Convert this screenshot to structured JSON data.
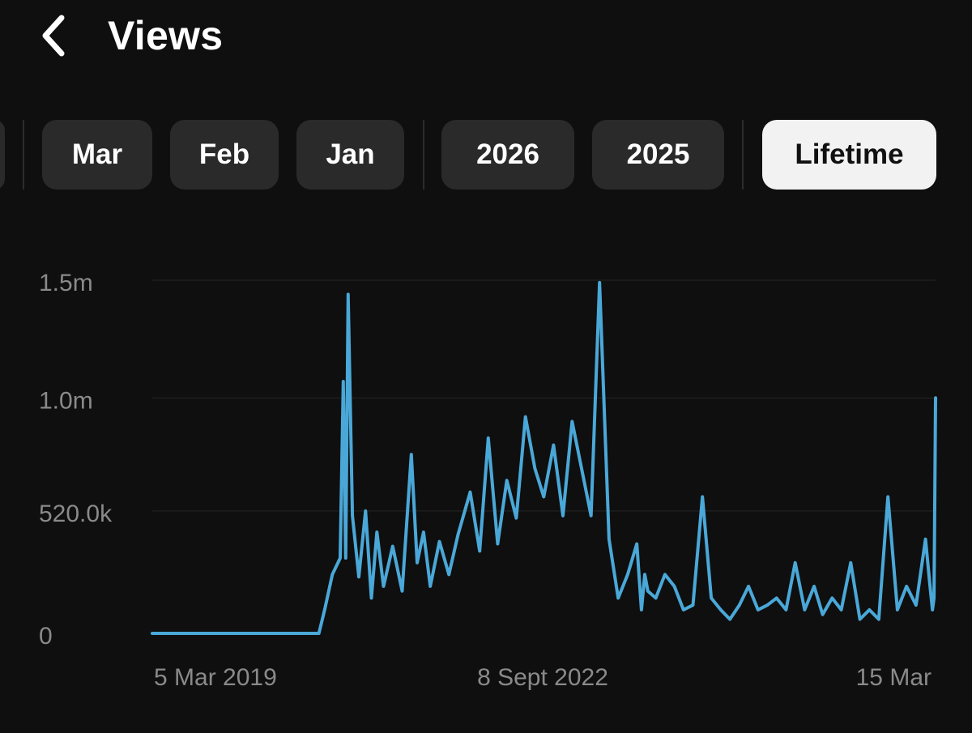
{
  "header": {
    "title": "Views"
  },
  "filters": {
    "chips": [
      {
        "label": "Mar"
      },
      {
        "label": "Feb"
      },
      {
        "label": "Jan"
      },
      {
        "label": "2026"
      },
      {
        "label": "2025"
      },
      {
        "label": "Lifetime"
      }
    ],
    "selected": "Lifetime"
  },
  "colors": {
    "background": "#0f0f0f",
    "chip_bg": "#2a2a2a",
    "chip_active_bg": "#f2f2f2",
    "line": "#4aa8d8",
    "axis_text": "#8a8a8a"
  },
  "icons": {
    "back": "chevron-left-icon"
  },
  "chart_data": {
    "type": "line",
    "title": "",
    "xlabel": "",
    "ylabel": "",
    "ylim": [
      0,
      1500000
    ],
    "y_ticks": [
      {
        "value": 0,
        "label": "0"
      },
      {
        "value": 520000,
        "label": "520.0k"
      },
      {
        "value": 1000000,
        "label": "1.0m"
      },
      {
        "value": 1500000,
        "label": "1.5m"
      }
    ],
    "x_ticks": [
      "5 Mar 2019",
      "8 Sept 2022",
      "15 Mar"
    ],
    "grid": true,
    "series": [
      {
        "x": [
          "2019-03-05",
          "2020-09-01",
          "2020-09-20",
          "2020-10-15",
          "2020-11-10",
          "2020-11-20",
          "2020-11-28",
          "2020-12-06",
          "2020-12-20",
          "2021-01-10",
          "2021-02-01",
          "2021-02-20",
          "2021-03-10",
          "2021-04-01",
          "2021-05-01",
          "2021-06-01",
          "2021-07-01",
          "2021-07-20",
          "2021-08-10",
          "2021-09-01",
          "2021-10-01",
          "2021-11-01",
          "2021-12-01",
          "2022-01-10",
          "2022-02-10",
          "2022-03-10",
          "2022-04-10",
          "2022-05-10",
          "2022-06-10",
          "2022-07-10",
          "2022-08-10",
          "2022-09-08",
          "2022-10-10",
          "2022-11-10",
          "2022-12-10",
          "2023-01-10",
          "2023-02-10",
          "2023-03-10",
          "2023-04-10",
          "2023-05-10",
          "2023-06-10",
          "2023-07-10",
          "2023-07-25",
          "2023-08-05",
          "2023-08-15",
          "2023-09-10",
          "2023-10-10",
          "2023-11-10",
          "2023-12-10",
          "2024-01-10",
          "2024-02-10",
          "2024-03-10",
          "2024-04-10",
          "2024-05-10",
          "2024-06-10",
          "2024-07-10",
          "2024-08-10",
          "2024-09-10",
          "2024-10-10",
          "2024-11-10",
          "2024-12-10",
          "2025-01-10",
          "2025-02-10",
          "2025-03-10",
          "2025-04-10",
          "2025-05-10",
          "2025-06-10",
          "2025-07-10",
          "2025-08-10",
          "2025-09-10",
          "2025-10-10",
          "2025-11-10",
          "2025-12-10",
          "2026-01-10",
          "2026-02-10",
          "2026-02-25",
          "2026-03-05",
          "2026-03-10",
          "2026-03-12",
          "2026-03-15"
        ],
        "y": [
          0,
          0,
          100000,
          250000,
          320000,
          1070000,
          320000,
          1440000,
          500000,
          240000,
          520000,
          150000,
          430000,
          200000,
          370000,
          180000,
          760000,
          300000,
          430000,
          200000,
          390000,
          250000,
          420000,
          600000,
          350000,
          830000,
          380000,
          650000,
          490000,
          920000,
          700000,
          580000,
          800000,
          500000,
          900000,
          700000,
          500000,
          1490000,
          400000,
          150000,
          250000,
          380000,
          100000,
          250000,
          180000,
          150000,
          250000,
          200000,
          100000,
          120000,
          580000,
          150000,
          100000,
          60000,
          120000,
          200000,
          100000,
          120000,
          150000,
          100000,
          300000,
          100000,
          200000,
          80000,
          150000,
          100000,
          300000,
          60000,
          100000,
          60000,
          580000,
          100000,
          200000,
          120000,
          400000,
          200000,
          100000,
          150000,
          500000,
          1000000
        ]
      }
    ]
  }
}
